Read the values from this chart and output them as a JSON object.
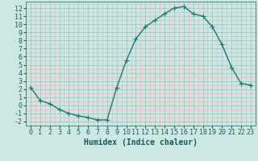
{
  "x": [
    0,
    1,
    2,
    3,
    4,
    5,
    6,
    7,
    8,
    9,
    10,
    11,
    12,
    13,
    14,
    15,
    16,
    17,
    18,
    19,
    20,
    21,
    22,
    23
  ],
  "y": [
    2.2,
    0.6,
    0.2,
    -0.5,
    -1.0,
    -1.3,
    -1.5,
    -1.8,
    -1.8,
    2.2,
    5.5,
    8.2,
    9.7,
    10.5,
    11.3,
    12.0,
    12.2,
    11.3,
    11.0,
    9.7,
    7.5,
    4.7,
    2.7,
    2.5
  ],
  "line_color": "#1a7a6e",
  "marker": "+",
  "marker_size": 4,
  "bg_color": "#cce8e4",
  "grid_color_major": "#b0c8c4",
  "grid_color_minor": "#e8b8b8",
  "xlabel": "Humidex (Indice chaleur)",
  "xlabel_fontsize": 7,
  "ylim": [
    -2.5,
    12.8
  ],
  "xlim": [
    -0.5,
    23.5
  ],
  "yticks": [
    -2,
    -1,
    0,
    1,
    2,
    3,
    4,
    5,
    6,
    7,
    8,
    9,
    10,
    11,
    12
  ],
  "xticks": [
    0,
    1,
    2,
    3,
    4,
    5,
    6,
    7,
    8,
    9,
    10,
    11,
    12,
    13,
    14,
    15,
    16,
    17,
    18,
    19,
    20,
    21,
    22,
    23
  ],
  "tick_fontsize": 6,
  "line_width": 1.0
}
